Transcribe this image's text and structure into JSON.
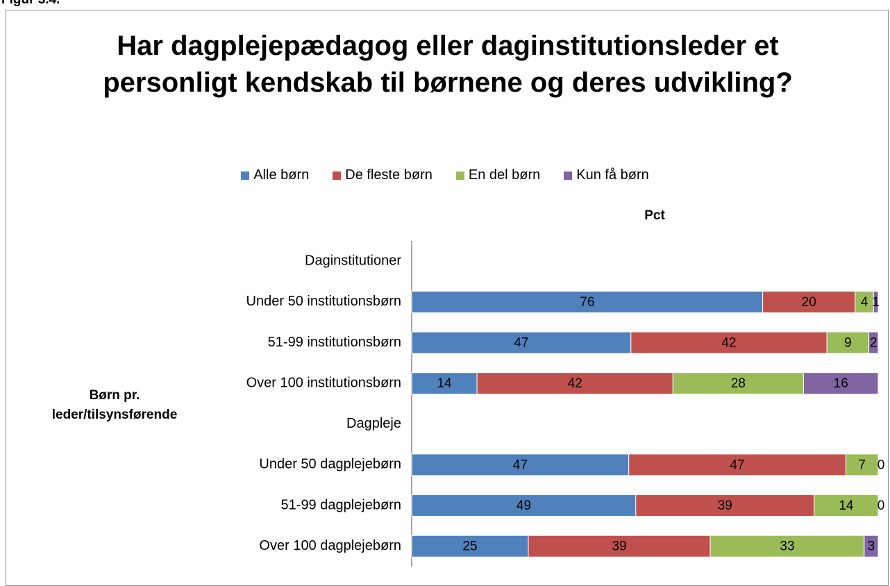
{
  "figure_label": "Figur 3.4.",
  "chart_data": {
    "type": "bar",
    "orientation": "horizontal",
    "stacking": "percent",
    "title": "Har dagplejepædagog eller daginstitutionsleder et personligt kendskab til børnene og deres udvikling?",
    "x_label": "Pct",
    "y_label": "Børn pr. leder/tilsynsførende",
    "categories": [
      "Daginstitutioner",
      "Under 50 institutionsbørn",
      "51-99 institutionsbørn",
      "Over 100 institutionsbørn",
      "Dagpleje",
      "Under 50 dagplejebørn",
      "51-99 dagplejebørn",
      "Over 100 dagplejebørn"
    ],
    "series": [
      {
        "name": "Alle børn",
        "color": "#4f81bd",
        "values": [
          null,
          76,
          47,
          14,
          null,
          47,
          49,
          25
        ]
      },
      {
        "name": "De fleste børn",
        "color": "#c0504d",
        "values": [
          null,
          20,
          42,
          42,
          null,
          47,
          39,
          39
        ]
      },
      {
        "name": "En del børn",
        "color": "#9bbb59",
        "values": [
          null,
          4,
          9,
          28,
          null,
          7,
          14,
          33
        ]
      },
      {
        "name": "Kun få børn",
        "color": "#8064a2",
        "values": [
          null,
          1,
          2,
          16,
          null,
          0,
          0,
          3
        ]
      }
    ],
    "legend": "top"
  }
}
